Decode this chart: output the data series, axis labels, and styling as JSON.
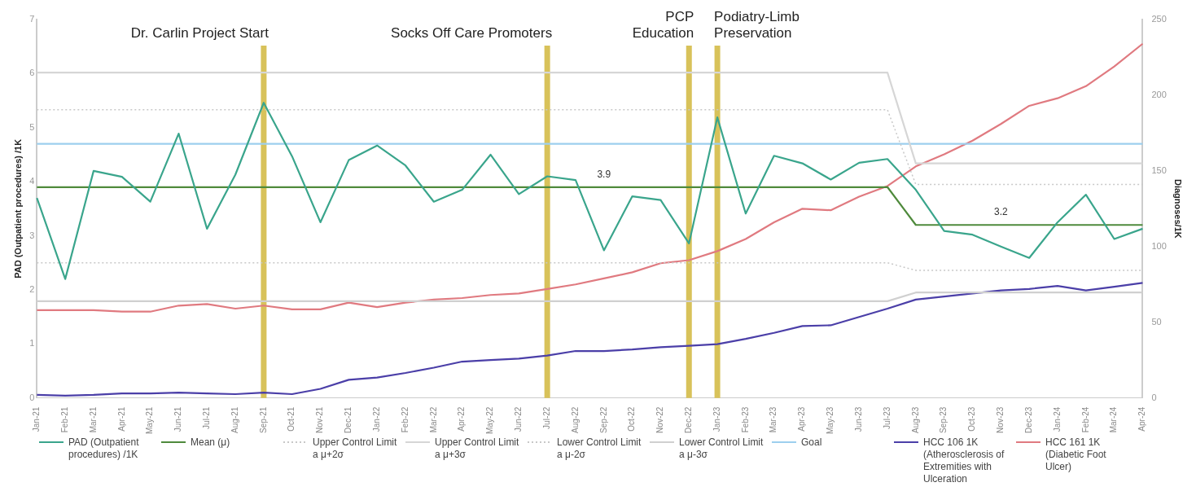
{
  "chart_data": {
    "type": "line",
    "xlabel": null,
    "ylabel": "PAD (Outpatient procedures) /1K",
    "y2label": "Diagnoses/1K",
    "categories": [
      "Jan-21",
      "Feb-21",
      "Mar-21",
      "Apr-21",
      "May-21",
      "Jun-21",
      "Jul-21",
      "Aug-21",
      "Sep-21",
      "Oct-21",
      "Nov-21",
      "Dec-21",
      "Jan-22",
      "Feb-22",
      "Mar-22",
      "Apr-22",
      "May-22",
      "Jun-22",
      "Jul-22",
      "Aug-22",
      "Sep-22",
      "Oct-22",
      "Nov-22",
      "Dec-22",
      "Jan-23",
      "Feb-23",
      "Mar-23",
      "Apr-23",
      "May-23",
      "Jun-23",
      "Jul-23",
      "Aug-23",
      "Sep-23",
      "Oct-23",
      "Nov-23",
      "Dec-23",
      "Jan-24",
      "Feb-24",
      "Mar-24",
      "Apr-24"
    ],
    "series": [
      {
        "name": "PAD (Outpatient procedures) /1K",
        "color": "#3aa58c",
        "values": [
          3.7,
          2.2,
          4.2,
          4.09,
          3.63,
          4.89,
          3.13,
          4.13,
          5.46,
          4.47,
          3.25,
          4.4,
          4.67,
          4.3,
          3.63,
          3.85,
          4.5,
          3.77,
          4.1,
          4.03,
          2.73,
          3.73,
          3.66,
          2.86,
          5.19,
          3.41,
          4.48,
          4.34,
          4.04,
          4.35,
          4.42,
          3.85,
          3.09,
          3.02,
          2.8,
          2.59,
          3.25,
          3.76,
          2.94,
          3.13
        ]
      },
      {
        "name": "Mean (μ)",
        "color": "#4f8a3c",
        "values": [
          3.9,
          3.9,
          3.9,
          3.9,
          3.9,
          3.9,
          3.9,
          3.9,
          3.9,
          3.9,
          3.9,
          3.9,
          3.9,
          3.9,
          3.9,
          3.9,
          3.9,
          3.9,
          3.9,
          3.9,
          3.9,
          3.9,
          3.9,
          3.9,
          3.9,
          3.9,
          3.9,
          3.9,
          3.9,
          3.9,
          3.9,
          3.2,
          3.2,
          3.2,
          3.2,
          3.2,
          3.2,
          3.2,
          3.2,
          3.2
        ]
      },
      {
        "name": "Upper Control Limit a μ+2σ",
        "color": "#c8c8c8",
        "line_style": "dotted",
        "values": [
          5.33,
          5.33,
          5.33,
          5.33,
          5.33,
          5.33,
          5.33,
          5.33,
          5.33,
          5.33,
          5.33,
          5.33,
          5.33,
          5.33,
          5.33,
          5.33,
          5.33,
          5.33,
          5.33,
          5.33,
          5.33,
          5.33,
          5.33,
          5.33,
          5.33,
          5.33,
          5.33,
          5.33,
          5.33,
          5.33,
          5.33,
          3.95,
          3.95,
          3.95,
          3.95,
          3.95,
          3.95,
          3.95,
          3.95,
          3.95
        ]
      },
      {
        "name": "Upper Control Limit a μ+3σ",
        "color": "#d6d6d6",
        "line_style": "solid",
        "values": [
          6.02,
          6.02,
          6.02,
          6.02,
          6.02,
          6.02,
          6.02,
          6.02,
          6.02,
          6.02,
          6.02,
          6.02,
          6.02,
          6.02,
          6.02,
          6.02,
          6.02,
          6.02,
          6.02,
          6.02,
          6.02,
          6.02,
          6.02,
          6.02,
          6.02,
          6.02,
          6.02,
          6.02,
          6.02,
          6.02,
          6.02,
          4.34,
          4.34,
          4.34,
          4.34,
          4.34,
          4.34,
          4.34,
          4.34,
          4.34
        ]
      },
      {
        "name": "Lower Control Limit a μ-2σ",
        "color": "#c8c8c8",
        "line_style": "dotted",
        "values": [
          2.5,
          2.5,
          2.5,
          2.5,
          2.5,
          2.5,
          2.5,
          2.5,
          2.5,
          2.5,
          2.5,
          2.5,
          2.5,
          2.5,
          2.5,
          2.5,
          2.5,
          2.5,
          2.5,
          2.5,
          2.5,
          2.5,
          2.5,
          2.5,
          2.5,
          2.5,
          2.5,
          2.5,
          2.5,
          2.5,
          2.5,
          2.36,
          2.36,
          2.36,
          2.36,
          2.36,
          2.36,
          2.36,
          2.36,
          2.36
        ]
      },
      {
        "name": "Lower Control Limit a μ-3σ",
        "color": "#d0d0d0",
        "line_style": "solid",
        "values": [
          1.79,
          1.79,
          1.79,
          1.79,
          1.79,
          1.79,
          1.79,
          1.79,
          1.79,
          1.79,
          1.79,
          1.79,
          1.79,
          1.79,
          1.79,
          1.79,
          1.79,
          1.79,
          1.79,
          1.79,
          1.79,
          1.79,
          1.79,
          1.79,
          1.79,
          1.79,
          1.79,
          1.79,
          1.79,
          1.79,
          1.79,
          1.95,
          1.95,
          1.95,
          1.95,
          1.95,
          1.95,
          1.95,
          1.95,
          1.95
        ]
      },
      {
        "name": "Goal",
        "color": "#9dcfee",
        "values": [
          4.7,
          4.7,
          4.7,
          4.7,
          4.7,
          4.7,
          4.7,
          4.7,
          4.7,
          4.7,
          4.7,
          4.7,
          4.7,
          4.7,
          4.7,
          4.7,
          4.7,
          4.7,
          4.7,
          4.7,
          4.7,
          4.7,
          4.7,
          4.7,
          4.7,
          4.7,
          4.7,
          4.7,
          4.7,
          4.7,
          4.7,
          4.7,
          4.7,
          4.7,
          4.7,
          4.7,
          4.7,
          4.7,
          4.7,
          4.7
        ]
      },
      {
        "name": "HCC 106 1K (Atherosclerosis of Extremities with Ulceration",
        "color": "#4b3fa8",
        "axis": "y2",
        "values": [
          2,
          1.5,
          2,
          3,
          3,
          3.5,
          3,
          2.5,
          3.5,
          2.5,
          6,
          12,
          13.5,
          16.5,
          20,
          24,
          25,
          26,
          28,
          31,
          31,
          32,
          33.5,
          34.5,
          35.5,
          39,
          43,
          47.5,
          48,
          53.5,
          59,
          65,
          67,
          69,
          71,
          72,
          74,
          71,
          73.5,
          76
        ]
      },
      {
        "name": "HCC 161 1K (Diabetic Foot Ulcer)",
        "color": "#e07a80",
        "axis": "y2",
        "values": [
          58,
          58,
          58,
          57,
          57,
          61,
          62,
          59,
          61,
          58.5,
          58.5,
          63,
          60,
          63,
          65,
          66,
          68,
          69,
          72,
          75,
          79,
          83,
          89,
          91,
          97,
          105,
          116,
          125,
          124,
          133,
          140,
          153,
          161,
          170,
          181,
          193,
          198,
          206,
          219,
          234
        ]
      }
    ],
    "ylim": [
      0,
      7
    ],
    "yticks": [
      0,
      1,
      2,
      3,
      4,
      5,
      6,
      7
    ],
    "y2lim": [
      0,
      250
    ],
    "y2ticks": [
      0,
      50,
      100,
      150,
      200,
      250
    ],
    "ref_lines": [
      {
        "axis": "x",
        "value": "Sep-21",
        "label": "Dr. Carlin Project Start",
        "color": "#d8c25a"
      },
      {
        "axis": "x",
        "value": "Jul-22",
        "label": "Socks Off Care Promoters",
        "color": "#d8c25a"
      },
      {
        "axis": "x",
        "value": "Dec-22",
        "label": "PCP Education",
        "color": "#d8c25a"
      },
      {
        "axis": "x",
        "value": "Jan-23",
        "label": "Podiatry-Limb Preservation",
        "color": "#d8c25a"
      }
    ],
    "annotations": [
      {
        "text": "3.9",
        "x": "Sep-22",
        "y": 3.9
      },
      {
        "text": "3.2",
        "x": "Nov-23",
        "y": 3.2
      }
    ],
    "marker": "none",
    "line_style": "solid",
    "legend": "bottom"
  }
}
